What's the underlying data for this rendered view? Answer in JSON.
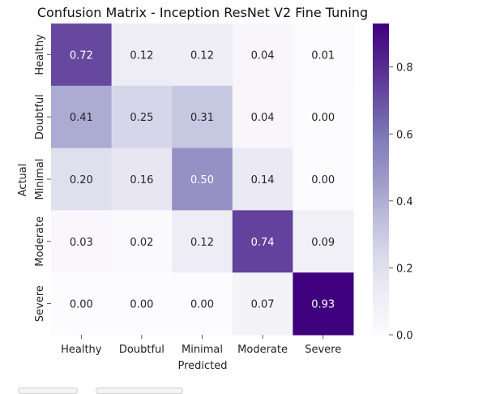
{
  "chart_data": {
    "type": "heatmap",
    "title": "Confusion Matrix - Inception ResNet V2 Fine Tuning",
    "xlabel": "Predicted",
    "ylabel": "Actual",
    "x_categories": [
      "Healthy",
      "Doubtful",
      "Minimal",
      "Moderate",
      "Severe"
    ],
    "y_categories": [
      "Healthy",
      "Doubtful",
      "Minimal",
      "Moderate",
      "Severe"
    ],
    "values": [
      [
        0.72,
        0.12,
        0.12,
        0.04,
        0.01
      ],
      [
        0.41,
        0.25,
        0.31,
        0.04,
        0.0
      ],
      [
        0.2,
        0.16,
        0.5,
        0.14,
        0.0
      ],
      [
        0.03,
        0.02,
        0.12,
        0.74,
        0.09
      ],
      [
        0.0,
        0.0,
        0.0,
        0.07,
        0.93
      ]
    ],
    "colormap": "Purples",
    "colorbar": {
      "range": [
        0.0,
        0.93
      ],
      "ticks": [
        "0.0",
        "0.2",
        "0.4",
        "0.6",
        "0.8"
      ]
    }
  }
}
